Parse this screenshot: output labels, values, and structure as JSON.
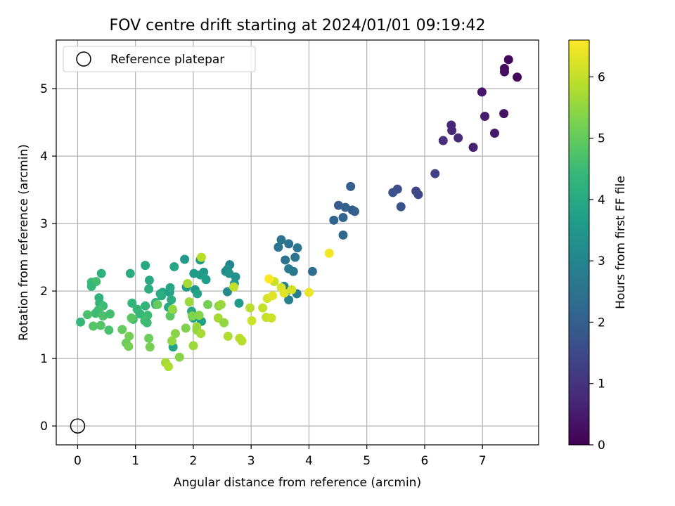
{
  "chart_data": {
    "type": "scatter",
    "title": "FOV centre drift starting at 2024/01/01 09:19:42",
    "xlabel": "Angular distance from reference (arcmin)",
    "ylabel": "Rotation from reference (arcmin)",
    "xlim": [
      -0.37,
      7.97
    ],
    "ylim": [
      -0.28,
      5.72
    ],
    "xticks": [
      "0",
      "1",
      "2",
      "3",
      "4",
      "5",
      "6",
      "7"
    ],
    "yticks": [
      "0",
      "1",
      "2",
      "3",
      "4",
      "5"
    ],
    "grid": true,
    "legend": {
      "placement": "top-left",
      "entries": [
        "Reference platepar"
      ]
    },
    "reference_point": {
      "x": 0,
      "y": 0
    },
    "colorbar": {
      "label": "Hours from first FF file",
      "range": [
        0,
        6.6
      ],
      "ticks": [
        "0",
        "1",
        "2",
        "3",
        "4",
        "5",
        "6"
      ],
      "colormap": [
        "#440154",
        "#482878",
        "#3e4989",
        "#31688e",
        "#26828e",
        "#1f9e89",
        "#35b779",
        "#6ece58",
        "#b5de2b",
        "#fde725"
      ]
    },
    "series": [
      {
        "points": [
          {
            "x": 7.45,
            "y": 5.43,
            "h": 0.15
          },
          {
            "x": 7.38,
            "y": 5.3,
            "h": 0.2
          },
          {
            "x": 7.38,
            "y": 5.25,
            "h": 0.25
          },
          {
            "x": 7.6,
            "y": 5.17,
            "h": 0.1
          },
          {
            "x": 6.99,
            "y": 4.95,
            "h": 0.4
          },
          {
            "x": 7.37,
            "y": 4.63,
            "h": 0.35
          },
          {
            "x": 7.04,
            "y": 4.59,
            "h": 0.5
          },
          {
            "x": 6.46,
            "y": 4.46,
            "h": 0.7
          },
          {
            "x": 6.47,
            "y": 4.38,
            "h": 0.75
          },
          {
            "x": 7.21,
            "y": 4.34,
            "h": 0.45
          },
          {
            "x": 6.58,
            "y": 4.27,
            "h": 0.8
          },
          {
            "x": 6.32,
            "y": 4.23,
            "h": 0.9
          },
          {
            "x": 6.84,
            "y": 4.13,
            "h": 0.6
          },
          {
            "x": 6.18,
            "y": 3.74,
            "h": 1.3
          },
          {
            "x": 5.85,
            "y": 3.48,
            "h": 1.4
          },
          {
            "x": 5.53,
            "y": 3.51,
            "h": 1.6
          },
          {
            "x": 5.45,
            "y": 3.46,
            "h": 1.65
          },
          {
            "x": 5.89,
            "y": 3.43,
            "h": 1.45
          },
          {
            "x": 5.59,
            "y": 3.25,
            "h": 1.7
          },
          {
            "x": 4.72,
            "y": 3.55,
            "h": 2.0
          },
          {
            "x": 4.51,
            "y": 3.27,
            "h": 1.9
          },
          {
            "x": 4.63,
            "y": 3.24,
            "h": 2.05
          },
          {
            "x": 4.75,
            "y": 3.2,
            "h": 1.95
          },
          {
            "x": 4.79,
            "y": 3.18,
            "h": 2.0
          },
          {
            "x": 4.59,
            "y": 3.09,
            "h": 2.1
          },
          {
            "x": 4.43,
            "y": 3.05,
            "h": 2.15
          },
          {
            "x": 4.59,
            "y": 2.83,
            "h": 2.2
          },
          {
            "x": 3.52,
            "y": 2.76,
            "h": 2.5
          },
          {
            "x": 3.47,
            "y": 2.65,
            "h": 2.55
          },
          {
            "x": 3.65,
            "y": 2.7,
            "h": 2.45
          },
          {
            "x": 3.8,
            "y": 2.64,
            "h": 2.6
          },
          {
            "x": 3.76,
            "y": 2.5,
            "h": 2.6
          },
          {
            "x": 3.59,
            "y": 2.46,
            "h": 2.5
          },
          {
            "x": 3.65,
            "y": 2.33,
            "h": 2.7
          },
          {
            "x": 3.73,
            "y": 2.29,
            "h": 2.65
          },
          {
            "x": 4.06,
            "y": 2.29,
            "h": 2.4
          },
          {
            "x": 3.57,
            "y": 2.07,
            "h": 2.9
          },
          {
            "x": 3.63,
            "y": 2.01,
            "h": 2.95
          },
          {
            "x": 3.79,
            "y": 1.96,
            "h": 2.85
          },
          {
            "x": 3.65,
            "y": 1.87,
            "h": 2.9
          },
          {
            "x": 2.63,
            "y": 2.39,
            "h": 3.0
          },
          {
            "x": 2.59,
            "y": 2.32,
            "h": 3.3
          },
          {
            "x": 2.56,
            "y": 2.29,
            "h": 3.2
          },
          {
            "x": 2.62,
            "y": 2.26,
            "h": 3.4
          },
          {
            "x": 2.73,
            "y": 2.21,
            "h": 3.3
          },
          {
            "x": 2.71,
            "y": 2.11,
            "h": 3.5
          },
          {
            "x": 2.59,
            "y": 1.99,
            "h": 3.1
          },
          {
            "x": 2.79,
            "y": 1.82,
            "h": 3.6
          },
          {
            "x": 1.85,
            "y": 2.47,
            "h": 3.5
          },
          {
            "x": 2.12,
            "y": 2.46,
            "h": 3.55
          },
          {
            "x": 2.18,
            "y": 2.28,
            "h": 3.6
          },
          {
            "x": 2.12,
            "y": 2.24,
            "h": 3.65
          },
          {
            "x": 2.01,
            "y": 2.26,
            "h": 3.6
          },
          {
            "x": 2.22,
            "y": 2.17,
            "h": 3.7
          },
          {
            "x": 2.03,
            "y": 2.02,
            "h": 3.5
          },
          {
            "x": 1.88,
            "y": 2.06,
            "h": 3.6
          },
          {
            "x": 2.07,
            "y": 1.96,
            "h": 3.8
          },
          {
            "x": 1.67,
            "y": 2.36,
            "h": 3.9
          },
          {
            "x": 1.17,
            "y": 2.38,
            "h": 4.0
          },
          {
            "x": 0.91,
            "y": 2.26,
            "h": 4.1
          },
          {
            "x": 0.41,
            "y": 2.26,
            "h": 4.2
          },
          {
            "x": 1.24,
            "y": 2.16,
            "h": 4.0
          },
          {
            "x": 1.23,
            "y": 2.03,
            "h": 4.1
          },
          {
            "x": 1.47,
            "y": 1.98,
            "h": 3.9
          },
          {
            "x": 1.43,
            "y": 1.96,
            "h": 4.0
          },
          {
            "x": 1.45,
            "y": 1.93,
            "h": 4.1
          },
          {
            "x": 1.59,
            "y": 1.98,
            "h": 3.8
          },
          {
            "x": 1.6,
            "y": 2.05,
            "h": 3.9
          },
          {
            "x": 1.62,
            "y": 1.87,
            "h": 4.1
          },
          {
            "x": 1.35,
            "y": 1.83,
            "h": 4.2
          },
          {
            "x": 1.17,
            "y": 1.78,
            "h": 4.3
          },
          {
            "x": 1.35,
            "y": 1.8,
            "h": 4.2
          },
          {
            "x": 1.57,
            "y": 1.76,
            "h": 4.0
          },
          {
            "x": 1.64,
            "y": 1.72,
            "h": 4.1
          },
          {
            "x": 1.03,
            "y": 1.73,
            "h": 4.4
          },
          {
            "x": 0.94,
            "y": 1.82,
            "h": 4.3
          },
          {
            "x": 1.08,
            "y": 1.66,
            "h": 4.4
          },
          {
            "x": 1.21,
            "y": 1.64,
            "h": 4.5
          },
          {
            "x": 1.16,
            "y": 1.56,
            "h": 4.6
          },
          {
            "x": 1.2,
            "y": 1.53,
            "h": 4.5
          },
          {
            "x": 0.96,
            "y": 1.58,
            "h": 4.6
          },
          {
            "x": 2.14,
            "y": 1.55,
            "h": 3.7
          },
          {
            "x": 2.0,
            "y": 1.6,
            "h": 3.8
          },
          {
            "x": 1.97,
            "y": 1.7,
            "h": 3.9
          },
          {
            "x": 1.65,
            "y": 1.17,
            "h": 3.8
          },
          {
            "x": 0.24,
            "y": 2.13,
            "h": 4.5
          },
          {
            "x": 0.32,
            "y": 2.14,
            "h": 4.6
          },
          {
            "x": 0.24,
            "y": 2.07,
            "h": 4.4
          },
          {
            "x": 0.37,
            "y": 1.9,
            "h": 4.2
          },
          {
            "x": 0.38,
            "y": 1.82,
            "h": 4.3
          },
          {
            "x": 0.44,
            "y": 1.78,
            "h": 4.5
          },
          {
            "x": 0.36,
            "y": 1.72,
            "h": 4.6
          },
          {
            "x": 0.31,
            "y": 1.67,
            "h": 4.5
          },
          {
            "x": 0.44,
            "y": 1.63,
            "h": 4.7
          },
          {
            "x": 0.56,
            "y": 1.66,
            "h": 4.6
          },
          {
            "x": 0.17,
            "y": 1.65,
            "h": 4.7
          },
          {
            "x": 0.05,
            "y": 1.54,
            "h": 4.4
          },
          {
            "x": 0.27,
            "y": 1.48,
            "h": 4.8
          },
          {
            "x": 0.4,
            "y": 1.49,
            "h": 4.8
          },
          {
            "x": 0.54,
            "y": 1.42,
            "h": 4.7
          },
          {
            "x": 0.77,
            "y": 1.43,
            "h": 5.0
          },
          {
            "x": 0.89,
            "y": 1.33,
            "h": 5.2
          },
          {
            "x": 0.84,
            "y": 1.23,
            "h": 5.1
          },
          {
            "x": 0.88,
            "y": 1.18,
            "h": 5.2
          },
          {
            "x": 0.93,
            "y": 1.6,
            "h": 4.9
          },
          {
            "x": 1.23,
            "y": 1.3,
            "h": 5.1
          },
          {
            "x": 1.25,
            "y": 1.17,
            "h": 5.2
          },
          {
            "x": 1.6,
            "y": 1.63,
            "h": 4.9
          },
          {
            "x": 1.98,
            "y": 1.63,
            "h": 5.3
          },
          {
            "x": 2.1,
            "y": 1.64,
            "h": 5.4
          },
          {
            "x": 2.06,
            "y": 1.47,
            "h": 5.6
          },
          {
            "x": 2.06,
            "y": 1.42,
            "h": 5.5
          },
          {
            "x": 2.13,
            "y": 1.37,
            "h": 5.7
          },
          {
            "x": 1.69,
            "y": 1.37,
            "h": 5.4
          },
          {
            "x": 1.63,
            "y": 1.26,
            "h": 5.5
          },
          {
            "x": 1.87,
            "y": 1.45,
            "h": 5.3
          },
          {
            "x": 2.0,
            "y": 1.19,
            "h": 5.6
          },
          {
            "x": 1.76,
            "y": 1.02,
            "h": 5.4
          },
          {
            "x": 1.52,
            "y": 0.94,
            "h": 5.7
          },
          {
            "x": 1.57,
            "y": 0.88,
            "h": 5.8
          },
          {
            "x": 1.38,
            "y": 1.8,
            "h": 5.0
          },
          {
            "x": 1.64,
            "y": 1.73,
            "h": 5.5
          },
          {
            "x": 1.93,
            "y": 1.84,
            "h": 5.6
          },
          {
            "x": 1.9,
            "y": 2.11,
            "h": 5.7
          },
          {
            "x": 2.14,
            "y": 2.5,
            "h": 5.9
          },
          {
            "x": 2.25,
            "y": 1.8,
            "h": 5.2
          },
          {
            "x": 2.44,
            "y": 1.78,
            "h": 5.4
          },
          {
            "x": 2.48,
            "y": 1.8,
            "h": 5.6
          },
          {
            "x": 2.43,
            "y": 1.6,
            "h": 5.7
          },
          {
            "x": 2.53,
            "y": 1.53,
            "h": 5.5
          },
          {
            "x": 2.6,
            "y": 1.33,
            "h": 5.8
          },
          {
            "x": 2.8,
            "y": 1.3,
            "h": 5.9
          },
          {
            "x": 2.84,
            "y": 1.26,
            "h": 5.9
          },
          {
            "x": 2.7,
            "y": 2.06,
            "h": 6.0
          },
          {
            "x": 2.98,
            "y": 1.75,
            "h": 5.9
          },
          {
            "x": 3.01,
            "y": 1.56,
            "h": 6.1
          },
          {
            "x": 3.2,
            "y": 1.75,
            "h": 6.0
          },
          {
            "x": 3.26,
            "y": 1.61,
            "h": 6.0
          },
          {
            "x": 3.35,
            "y": 1.6,
            "h": 6.1
          },
          {
            "x": 3.28,
            "y": 1.89,
            "h": 6.2
          },
          {
            "x": 3.37,
            "y": 1.93,
            "h": 6.3
          },
          {
            "x": 3.4,
            "y": 2.14,
            "h": 6.1
          },
          {
            "x": 3.31,
            "y": 2.18,
            "h": 6.6
          },
          {
            "x": 3.52,
            "y": 2.05,
            "h": 6.2
          },
          {
            "x": 3.57,
            "y": 1.97,
            "h": 6.3
          },
          {
            "x": 3.7,
            "y": 2.02,
            "h": 6.2
          },
          {
            "x": 4.0,
            "y": 1.98,
            "h": 6.4
          },
          {
            "x": 4.35,
            "y": 2.56,
            "h": 6.5
          }
        ]
      }
    ]
  }
}
